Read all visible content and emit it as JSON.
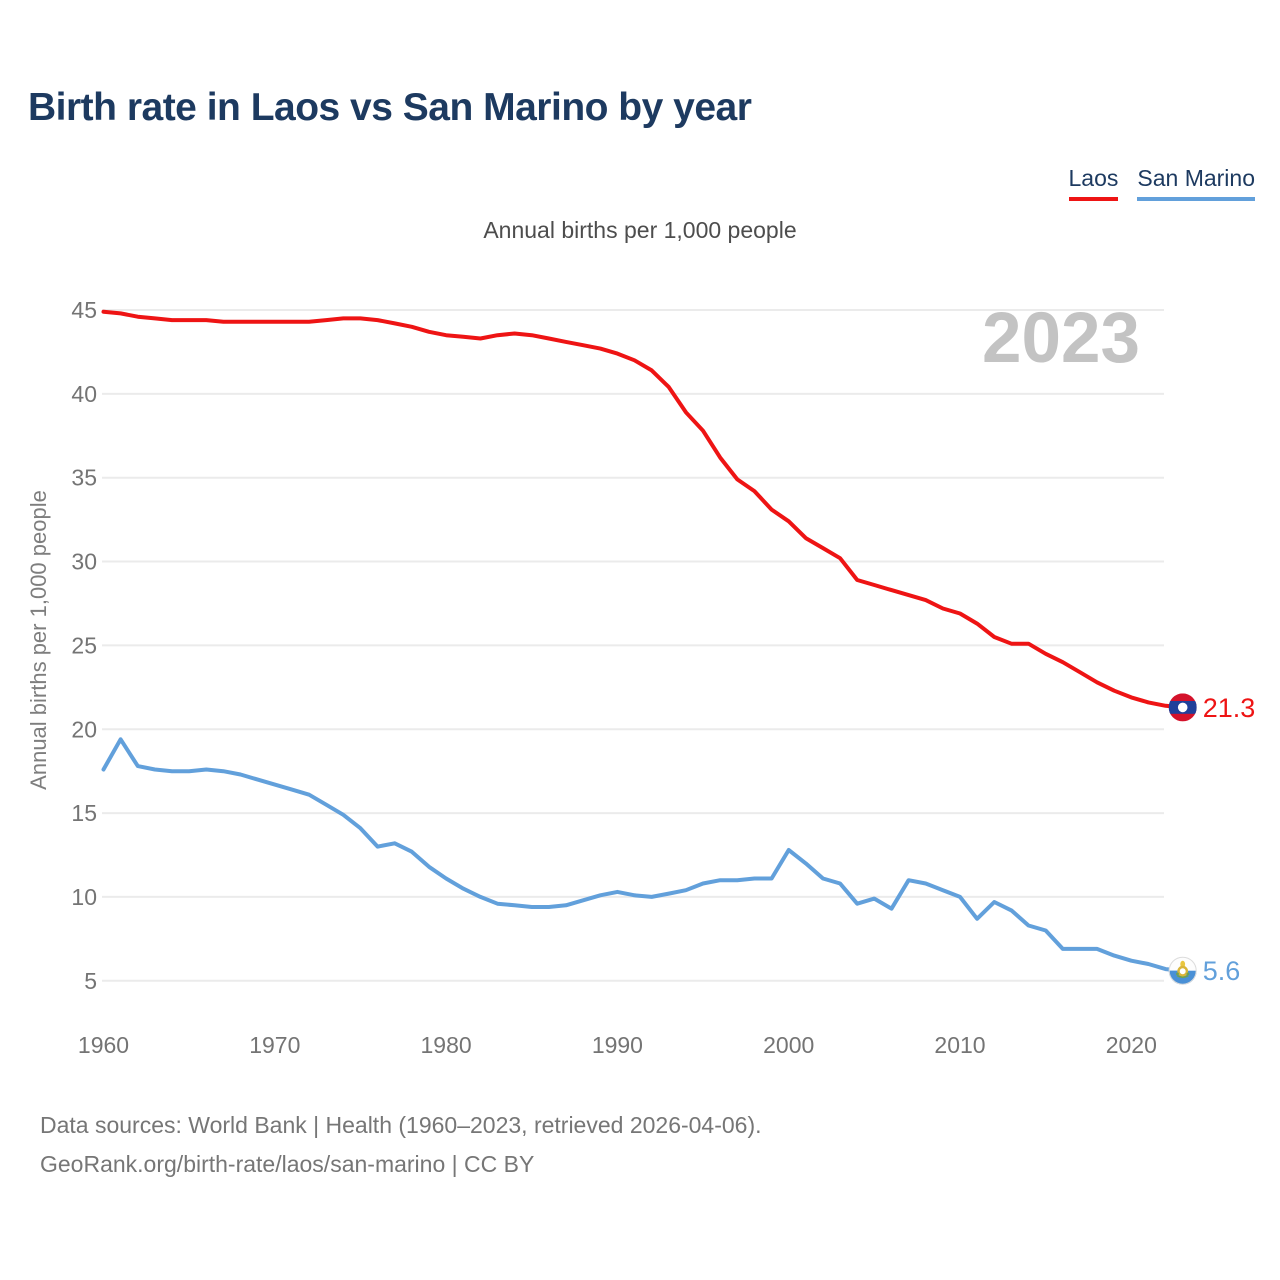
{
  "header": {
    "title": "Birth rate in Laos vs San Marino by year"
  },
  "legend": [
    {
      "label": "Laos",
      "color": "#ee1414"
    },
    {
      "label": "San Marino",
      "color": "#62a0db"
    }
  ],
  "subtitle": "Annual births per 1,000 people",
  "watermark": "2023",
  "footer": {
    "line1": "Data sources: World Bank | Health (1960–2023, retrieved 2026-04-06).",
    "line2": "GeoRank.org/birth-rate/laos/san-marino | CC BY"
  },
  "chart_data": {
    "type": "line",
    "title": "Birth rate in Laos vs San Marino by year",
    "xlabel": "",
    "ylabel": "Annual births per 1,000 people",
    "grid": "horizontal",
    "legend_position": "top-right",
    "x_ticks": [
      1960,
      1970,
      1980,
      1990,
      2000,
      2010,
      2020
    ],
    "y_ticks": [
      5,
      10,
      15,
      20,
      25,
      30,
      35,
      40,
      45
    ],
    "ylim": [
      2.5,
      46.5
    ],
    "xlim": [
      1960,
      2023
    ],
    "x": [
      1960,
      1961,
      1962,
      1963,
      1964,
      1965,
      1966,
      1967,
      1968,
      1969,
      1970,
      1971,
      1972,
      1973,
      1974,
      1975,
      1976,
      1977,
      1978,
      1979,
      1980,
      1981,
      1982,
      1983,
      1984,
      1985,
      1986,
      1987,
      1988,
      1989,
      1990,
      1991,
      1992,
      1993,
      1994,
      1995,
      1996,
      1997,
      1998,
      1999,
      2000,
      2001,
      2002,
      2003,
      2004,
      2005,
      2006,
      2007,
      2008,
      2009,
      2010,
      2011,
      2012,
      2013,
      2014,
      2015,
      2016,
      2017,
      2018,
      2019,
      2020,
      2021,
      2022,
      2023
    ],
    "series": [
      {
        "name": "Laos",
        "color": "#ee1414",
        "marker": "laos-flag",
        "end_label": "21.3",
        "values": [
          44.9,
          44.8,
          44.6,
          44.5,
          44.4,
          44.4,
          44.4,
          44.3,
          44.3,
          44.3,
          44.3,
          44.3,
          44.3,
          44.4,
          44.5,
          44.5,
          44.4,
          44.2,
          44.0,
          43.7,
          43.5,
          43.4,
          43.3,
          43.5,
          43.6,
          43.5,
          43.3,
          43.1,
          42.9,
          42.7,
          42.4,
          42.0,
          41.4,
          40.4,
          38.9,
          37.8,
          36.2,
          34.9,
          34.2,
          33.1,
          32.4,
          31.4,
          30.8,
          30.2,
          28.9,
          28.6,
          28.3,
          28.0,
          27.7,
          27.2,
          26.9,
          26.3,
          25.5,
          25.1,
          25.1,
          24.5,
          24.0,
          23.4,
          22.8,
          22.3,
          21.9,
          21.6,
          21.4,
          21.3
        ]
      },
      {
        "name": "San Marino",
        "color": "#62a0db",
        "marker": "san-marino-flag",
        "end_label": "5.6",
        "values": [
          17.6,
          19.4,
          17.8,
          17.6,
          17.5,
          17.5,
          17.6,
          17.5,
          17.3,
          17.0,
          16.7,
          16.4,
          16.1,
          15.5,
          14.9,
          14.1,
          13.0,
          13.2,
          12.7,
          11.8,
          11.1,
          10.5,
          10.0,
          9.6,
          9.5,
          9.4,
          9.4,
          9.5,
          9.8,
          10.1,
          10.3,
          10.1,
          10.0,
          10.2,
          10.4,
          10.8,
          11.0,
          11.0,
          11.1,
          11.1,
          12.8,
          12.0,
          11.1,
          10.8,
          9.6,
          9.9,
          9.3,
          11.0,
          10.8,
          10.4,
          10.0,
          8.7,
          9.7,
          9.2,
          8.3,
          8.0,
          6.9,
          6.9,
          6.9,
          6.5,
          6.2,
          6.0,
          5.7,
          5.6
        ]
      }
    ]
  }
}
